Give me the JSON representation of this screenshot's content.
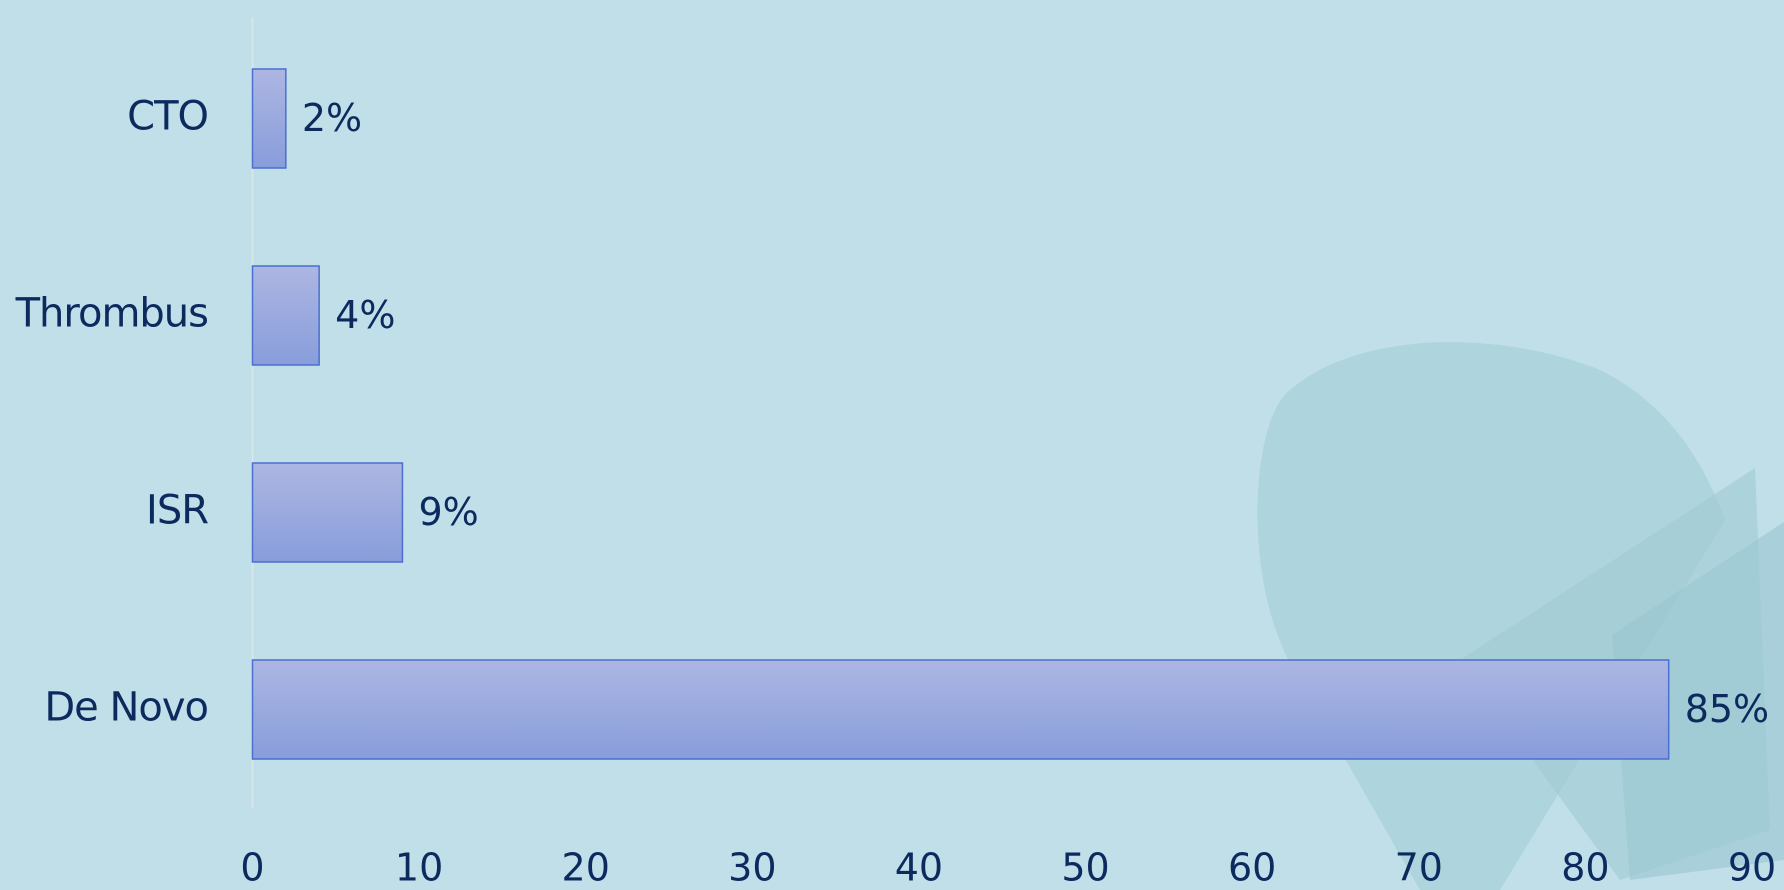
{
  "chart_data": {
    "type": "hbar",
    "categories": [
      "CTO",
      "Thrombus",
      "ISR",
      "De Novo"
    ],
    "values": [
      2,
      4,
      9,
      85
    ],
    "value_labels": [
      "2%",
      "4%",
      "9%",
      "85%"
    ],
    "color": "#98a8de",
    "xlim": [
      0,
      90
    ],
    "xticks": [
      0,
      10,
      20,
      30,
      40,
      50,
      60,
      70,
      80,
      90
    ],
    "grid": false
  }
}
